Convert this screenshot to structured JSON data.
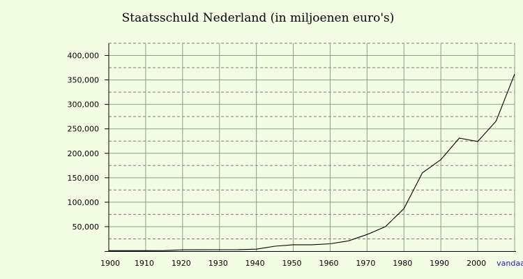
{
  "chart_data": {
    "type": "line",
    "title": "Staatsschuld Nederland (in miljoenen euro's)",
    "xlabel": "",
    "ylabel": "",
    "xlim": [
      1900,
      2010
    ],
    "ylim": [
      0,
      425000
    ],
    "grid": true,
    "y_ticks": [
      50000,
      100000,
      150000,
      200000,
      250000,
      300000,
      350000,
      400000
    ],
    "y_tick_labels": [
      "50,000",
      "100,000",
      "150,000",
      "200,000",
      "250,000",
      "300,000",
      "350,000",
      "400,000"
    ],
    "x_ticks": [
      1900,
      1910,
      1920,
      1930,
      1940,
      1950,
      1960,
      1970,
      1980,
      1990,
      2000,
      2010
    ],
    "x_tick_labels": [
      "1900",
      "1910",
      "1920",
      "1930",
      "1940",
      "1950",
      "1960",
      "1970",
      "1980",
      "1990",
      "2000",
      "vandaag"
    ],
    "series": [
      {
        "color": "#000000",
        "x": [
          1900,
          1905,
          1910,
          1915,
          1920,
          1925,
          1930,
          1935,
          1940,
          1945,
          1950,
          1955,
          1960,
          1965,
          1970,
          1975,
          1980,
          1985,
          1990,
          1995,
          2000,
          2005,
          2010
        ],
        "y": [
          1000,
          1000,
          1000,
          1200,
          2500,
          2700,
          2800,
          3000,
          4000,
          10000,
          13000,
          13000,
          15000,
          21000,
          34000,
          50000,
          87000,
          160000,
          187000,
          231000,
          224000,
          266000,
          362000
        ]
      }
    ]
  }
}
